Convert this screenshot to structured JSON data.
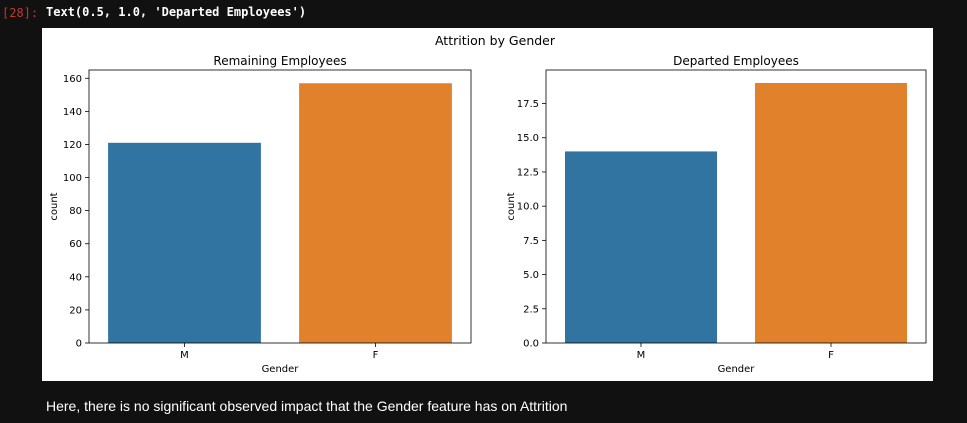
{
  "cell": {
    "prompt": "[28]:",
    "output_text": "Text(0.5, 1.0, 'Departed Employees')"
  },
  "figure": {
    "suptitle": "Attrition by Gender"
  },
  "chart_data": [
    {
      "type": "bar",
      "title": "Remaining Employees",
      "xlabel": "Gender",
      "ylabel": "count",
      "categories": [
        "M",
        "F"
      ],
      "values": [
        121,
        157
      ],
      "ylim": [
        0,
        165
      ],
      "yticks": [
        0,
        20,
        40,
        60,
        80,
        100,
        120,
        140,
        160
      ],
      "ytick_labels": [
        "0",
        "20",
        "40",
        "60",
        "80",
        "100",
        "120",
        "140",
        "160"
      ],
      "colors": [
        "#3274a1",
        "#e1812c"
      ],
      "grid": false
    },
    {
      "type": "bar",
      "title": "Departed Employees",
      "xlabel": "Gender",
      "ylabel": "count",
      "categories": [
        "M",
        "F"
      ],
      "values": [
        14,
        19
      ],
      "ylim": [
        0,
        19.95
      ],
      "yticks": [
        0,
        2.5,
        5,
        7.5,
        10,
        12.5,
        15,
        17.5
      ],
      "ytick_labels": [
        "0.0",
        "2.5",
        "5.0",
        "7.5",
        "10.0",
        "12.5",
        "15.0",
        "17.5"
      ],
      "colors": [
        "#3274a1",
        "#e1812c"
      ],
      "grid": false
    }
  ],
  "markdown": {
    "text": "Here, there is no significant observed impact that the Gender feature has on Attrition"
  }
}
